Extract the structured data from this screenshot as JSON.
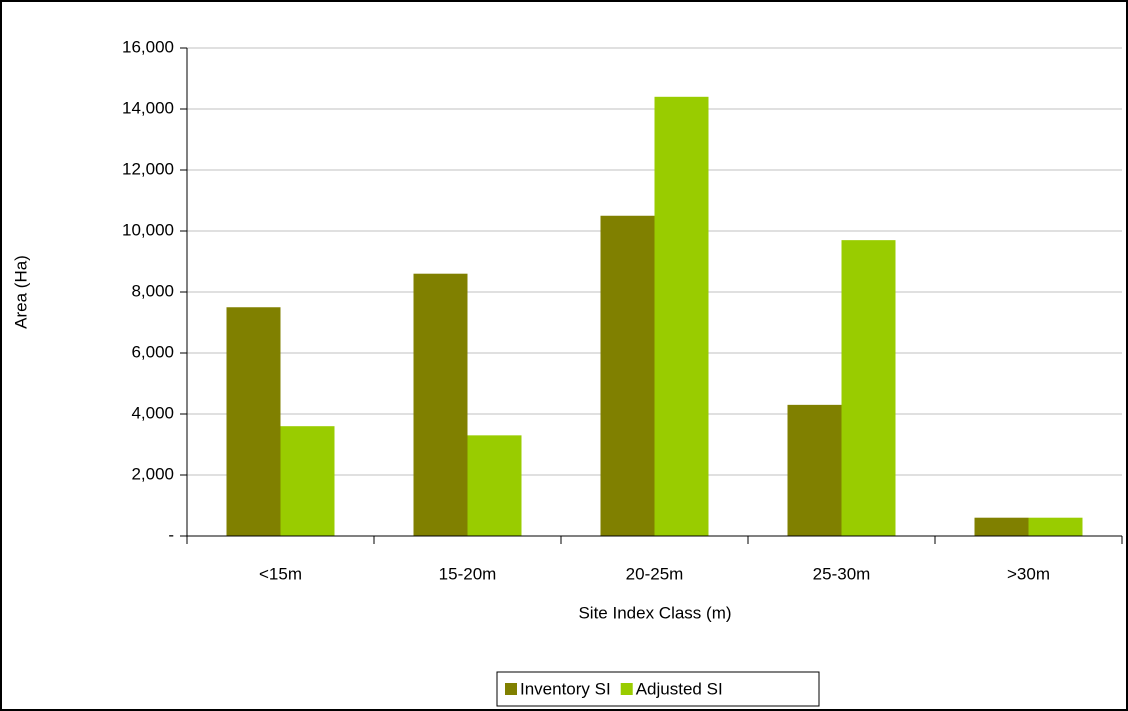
{
  "chart_data": {
    "type": "bar",
    "x_label": "Site Index Class (m)",
    "y_label": "Area (Ha)",
    "categories": [
      "<15m",
      "15-20m",
      "20-25m",
      "25-30m",
      ">30m"
    ],
    "series": [
      {
        "name": "Inventory SI",
        "color": "#808000",
        "values": [
          7500,
          8600,
          10500,
          4300,
          600
        ]
      },
      {
        "name": "Adjusted SI",
        "color": "#99cc00",
        "values": [
          3600,
          3300,
          14400,
          9700,
          600
        ]
      }
    ],
    "ylim": [
      0,
      16000
    ],
    "yticks": [
      {
        "value": 0,
        "label": "-"
      },
      {
        "value": 2000,
        "label": "2,000"
      },
      {
        "value": 4000,
        "label": "4,000"
      },
      {
        "value": 6000,
        "label": "6,000"
      },
      {
        "value": 8000,
        "label": "8,000"
      },
      {
        "value": 10000,
        "label": "10,000"
      },
      {
        "value": 12000,
        "label": "12,000"
      },
      {
        "value": 14000,
        "label": "14,000"
      },
      {
        "value": 16000,
        "label": "16,000"
      }
    ],
    "grid": true,
    "legend": "bottom"
  }
}
